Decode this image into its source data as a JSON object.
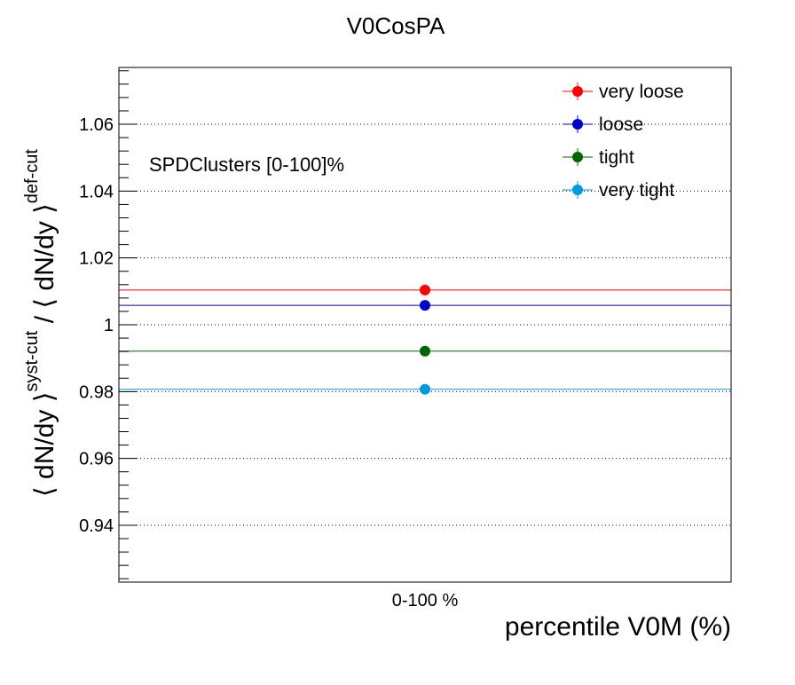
{
  "chart_data": {
    "type": "scatter",
    "title": "V0CosPA",
    "xlabel": "percentile V0M (%)",
    "ylabel": {
      "open": "⟨ dN/dy ⟩",
      "sup1": "syst-cut",
      "sep": " / ⟨ dN/dy ⟩",
      "sup2": "def-cut"
    },
    "categories": [
      "0-100 %"
    ],
    "ylim": [
      0.923,
      1.077
    ],
    "yticks": [
      0.94,
      0.96,
      0.98,
      1.0,
      1.02,
      1.04,
      1.06
    ],
    "ytick_labels": [
      "0.94",
      "0.96",
      "0.98",
      "1",
      "1.02",
      "1.04",
      "1.06"
    ],
    "grid": "horizontal-dotted",
    "annotation": "SPDClusters [0-100]%",
    "legend_position": "top-right",
    "series": [
      {
        "name": "very loose",
        "color": "#ff0000",
        "values": [
          1.0104
        ]
      },
      {
        "name": "loose",
        "color": "#0000cc",
        "values": [
          1.0058
        ]
      },
      {
        "name": "tight",
        "color": "#006600",
        "values": [
          0.9921
        ]
      },
      {
        "name": "very tight",
        "color": "#0099dd",
        "values": [
          0.9807
        ]
      }
    ]
  }
}
